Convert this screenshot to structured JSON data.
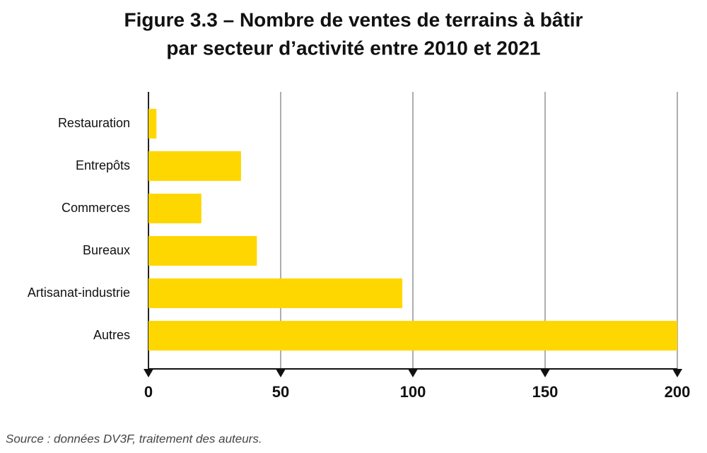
{
  "chart_data": {
    "type": "barh",
    "title": [
      "Figure 3.3 – Nombre de ventes de terrains à bâtir",
      "par secteur d’activité entre 2010 et 2021"
    ],
    "categories": [
      "Restauration",
      "Entrepôts",
      "Commerces",
      "Bureaux",
      "Artisanat-industrie",
      "Autres"
    ],
    "values": [
      3,
      35,
      20,
      41,
      96,
      200
    ],
    "color": "#ffd700",
    "xlim": [
      0,
      200
    ],
    "xticks": [
      0,
      50,
      100,
      150,
      200
    ],
    "grid": true,
    "source": "Source : données DV3F, traitement des auteurs."
  }
}
